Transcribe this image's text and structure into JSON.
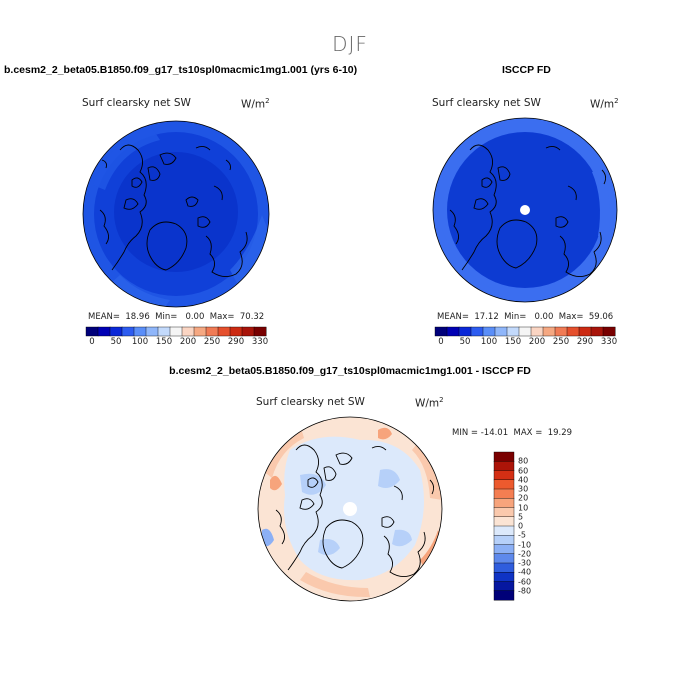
{
  "title": "DJF",
  "panel_left": {
    "case": "b.cesm2_2_beta05.B1850.f09_g17_ts10spl0macmic1mg1.001 (yrs 6-10)",
    "variable": "Surf clearsky net SW",
    "units_base": "W/m",
    "units_exp": "2",
    "stats": "MEAN=  18.96  Min=   0.00  Max=  70.32"
  },
  "panel_right": {
    "case": "ISCCP FD",
    "variable": "Surf clearsky net SW",
    "units_base": "W/m",
    "units_exp": "2",
    "stats": "MEAN=  17.12  Min=   0.00  Max=  59.06"
  },
  "panel_diff": {
    "case": "b.cesm2_2_beta05.B1850.f09_g17_ts10spl0macmic1mg1.001 - ISCCP FD",
    "variable": "Surf clearsky net SW",
    "units_base": "W/m",
    "units_exp": "2",
    "stats": "MIN = -14.01  MAX =  19.29"
  },
  "colorbar_top": {
    "labels": [
      "0",
      "50",
      "100",
      "150",
      "200",
      "250",
      "290",
      "330"
    ],
    "colors": [
      "#00007a",
      "#0000b4",
      "#0a28d8",
      "#2d5cf0",
      "#5a8ef8",
      "#8fb6fa",
      "#c3dafc",
      "#f5f5f5",
      "#fad5c3",
      "#f5a882",
      "#f07b55",
      "#e5502d",
      "#cc2a12",
      "#a8140a",
      "#780000"
    ]
  },
  "colorbar_diff": {
    "labels": [
      "80",
      "60",
      "40",
      "30",
      "20",
      "10",
      "5",
      "0",
      "-5",
      "-10",
      "-20",
      "-30",
      "-40",
      "-60",
      "-80"
    ],
    "colors": [
      "#7a0000",
      "#ac1408",
      "#d42f14",
      "#ec5a2e",
      "#f47e52",
      "#f7a47c",
      "#fac9ad",
      "#fbe4d4",
      "#dce9fb",
      "#b6d0f9",
      "#8cb0f5",
      "#5e89ec",
      "#2f5ddd",
      "#0f33c4",
      "#0617a0",
      "#000078"
    ]
  },
  "map_colors": {
    "model_outer": "#1f55e4",
    "model_mid": "#1040d8",
    "model_inner": "#0a34cc",
    "obs_outer": "#3b6ef0",
    "obs_inner": "#0d3bd2",
    "missing": "#ffffff",
    "diff_base": "#dce9fb",
    "diff_warm": "#fbe4d4",
    "diff_warm2": "#fac9ad",
    "diff_cool": "#b6d0f9"
  }
}
